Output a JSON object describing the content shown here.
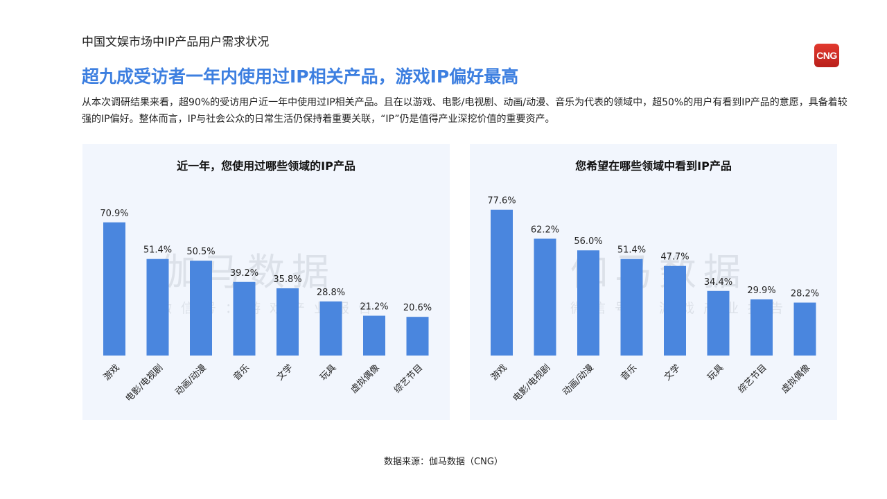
{
  "header": {
    "section_label": "中国文娱市场中IP产品用户需求状况",
    "logo_text": "CNG",
    "headline": "超九成受访者一年内使用过IP相关产品，游戏IP偏好最高",
    "description": "从本次调研结果来看，超90%的受访用户近一年中使用过IP相关产品。且在以游戏、电影/电视剧、动画/动漫、音乐为代表的领域中，超50%的用户有看到IP产品的意愿，具备着较强的IP偏好。整体而言，IP与社会公众的日常生活仍保持着重要关联，“IP”仍是值得产业深挖价值的重要资产。"
  },
  "watermark": {
    "main": "伽马数据",
    "sub": "微信号：游戏产业报告"
  },
  "colors": {
    "bar": "#4a86de",
    "accent": "#3d7fe0",
    "panel_bg": "#f2f6fd",
    "logo": "#d42b23"
  },
  "chart_data": [
    {
      "type": "bar",
      "title": "近一年，您使用过哪些领域的IP产品",
      "categories": [
        "游戏",
        "电影/电视剧",
        "动画/动漫",
        "音乐",
        "文学",
        "玩具",
        "虚拟偶像",
        "综艺节目"
      ],
      "values": [
        70.9,
        51.4,
        50.5,
        39.2,
        35.8,
        28.8,
        21.2,
        20.6
      ],
      "value_labels": [
        "70.9%",
        "51.4%",
        "50.5%",
        "39.2%",
        "35.8%",
        "28.8%",
        "21.2%",
        "20.6%"
      ],
      "ylim": [
        0,
        100
      ],
      "grid": false,
      "xlabel": "",
      "ylabel": ""
    },
    {
      "type": "bar",
      "title": "您希望在哪些领域中看到IP产品",
      "categories": [
        "游戏",
        "电影/电视剧",
        "动画/动漫",
        "音乐",
        "文学",
        "玩具",
        "综艺节目",
        "虚拟偶像"
      ],
      "values": [
        77.6,
        62.2,
        56.0,
        51.4,
        47.7,
        34.4,
        29.9,
        28.2
      ],
      "value_labels": [
        "77.6%",
        "62.2%",
        "56.0%",
        "51.4%",
        "47.7%",
        "34.4%",
        "29.9%",
        "28.2%"
      ],
      "ylim": [
        0,
        100
      ],
      "grid": false,
      "xlabel": "",
      "ylabel": ""
    }
  ],
  "footer": {
    "source": "数据来源：伽马数据（CNG）"
  }
}
